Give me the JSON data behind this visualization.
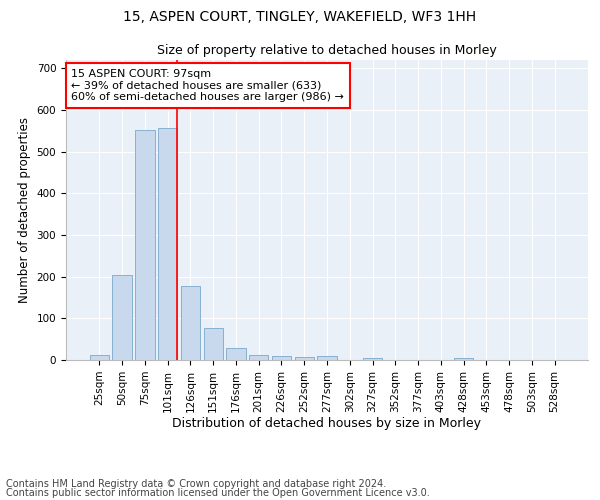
{
  "title": "15, ASPEN COURT, TINGLEY, WAKEFIELD, WF3 1HH",
  "subtitle": "Size of property relative to detached houses in Morley",
  "xlabel": "Distribution of detached houses by size in Morley",
  "ylabel": "Number of detached properties",
  "bar_labels": [
    "25sqm",
    "50sqm",
    "75sqm",
    "101sqm",
    "126sqm",
    "151sqm",
    "176sqm",
    "201sqm",
    "226sqm",
    "252sqm",
    "277sqm",
    "302sqm",
    "327sqm",
    "352sqm",
    "377sqm",
    "403sqm",
    "428sqm",
    "453sqm",
    "478sqm",
    "503sqm",
    "528sqm"
  ],
  "bar_values": [
    13,
    205,
    552,
    558,
    178,
    78,
    28,
    12,
    10,
    7,
    10,
    0,
    6,
    0,
    0,
    0,
    5,
    0,
    0,
    0,
    0
  ],
  "bar_color": "#c9d9ed",
  "bar_edge_color": "#7aa8cc",
  "vline_color": "red",
  "vline_pos": 3.42,
  "annotation_text": "15 ASPEN COURT: 97sqm\n← 39% of detached houses are smaller (633)\n60% of semi-detached houses are larger (986) →",
  "annotation_box_color": "white",
  "annotation_box_edge": "red",
  "ylim": [
    0,
    720
  ],
  "yticks": [
    0,
    100,
    200,
    300,
    400,
    500,
    600,
    700
  ],
  "background_color": "#eaf0f8",
  "footer_line1": "Contains HM Land Registry data © Crown copyright and database right 2024.",
  "footer_line2": "Contains public sector information licensed under the Open Government Licence v3.0.",
  "title_fontsize": 10,
  "subtitle_fontsize": 9,
  "xlabel_fontsize": 9,
  "ylabel_fontsize": 8.5,
  "tick_fontsize": 7.5,
  "annot_fontsize": 8,
  "footer_fontsize": 7
}
